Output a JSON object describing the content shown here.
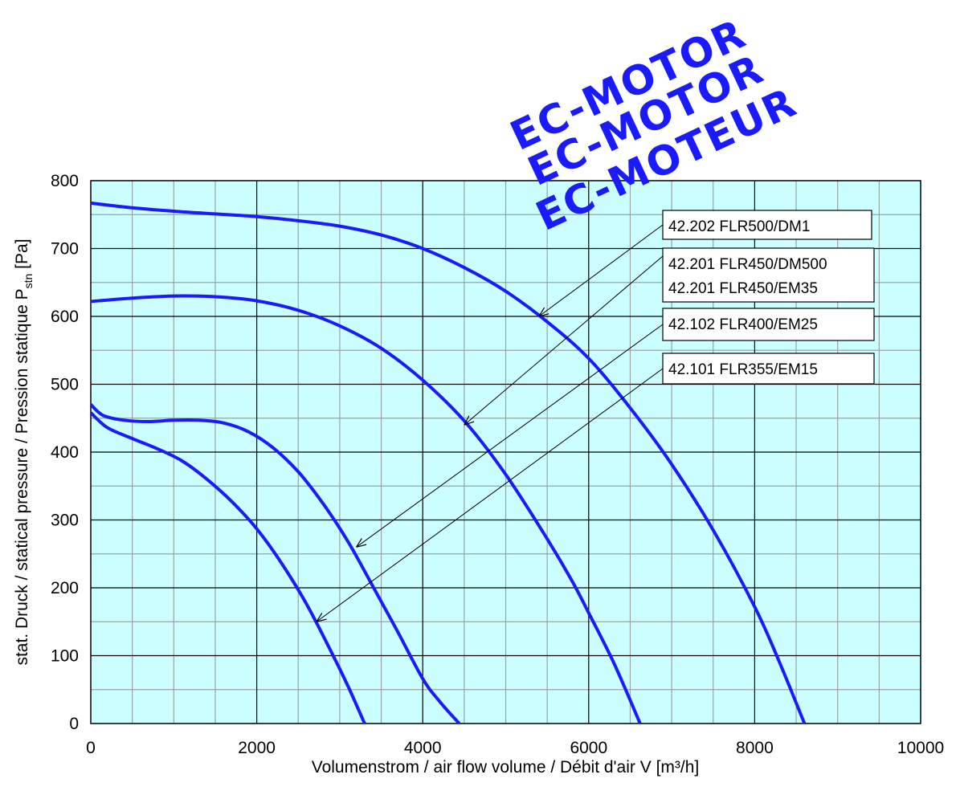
{
  "chart_data": {
    "type": "line",
    "xlabel": "Volumenstrom / air flow volume / Débit d'air V [m³/h]",
    "ylabel": "stat. Druck / statical pressure / Pression statique  P",
    "ylabel_sub": "stn",
    "ylabel_unit": " [Pa]",
    "xlim": [
      0,
      10000
    ],
    "ylim": [
      0,
      800
    ],
    "x_ticks": [
      "0",
      "2000",
      "4000",
      "6000",
      "8000",
      "10000"
    ],
    "y_ticks": [
      "0",
      "100",
      "200",
      "300",
      "400",
      "500",
      "600",
      "700",
      "800"
    ],
    "grid": true,
    "background_color": "#ccffff",
    "line_color": "#1a1aff",
    "series": [
      {
        "name": "42.202 FLR500/DM1",
        "pointer": [
          5400,
          600
        ],
        "x": [
          0,
          500,
          1000,
          1500,
          2000,
          2500,
          3000,
          3500,
          4000,
          4500,
          5000,
          5500,
          6000,
          6500,
          7000,
          7500,
          8000,
          8300,
          8600
        ],
        "y": [
          767,
          760,
          755,
          751,
          747,
          741,
          733,
          720,
          700,
          672,
          637,
          592,
          538,
          465,
          382,
          285,
          172,
          90,
          0
        ]
      },
      {
        "name": "42.201 FLR450/DM500",
        "name2": "42.201 FLR450/EM35",
        "pointer": [
          4500,
          440
        ],
        "x": [
          0,
          500,
          1000,
          1500,
          2000,
          2500,
          3000,
          3500,
          4000,
          4500,
          5000,
          5500,
          5800,
          6000,
          6300,
          6620
        ],
        "y": [
          622,
          627,
          630,
          629,
          623,
          609,
          586,
          553,
          506,
          446,
          367,
          272,
          210,
          163,
          90,
          0
        ]
      },
      {
        "name": "42.102 FLR400/EM25",
        "pointer": [
          3200,
          260
        ],
        "x": [
          0,
          150,
          400,
          700,
          1000,
          1300,
          1600,
          1900,
          2200,
          2500,
          2800,
          3100,
          3400,
          3700,
          4000,
          4200,
          4440
        ],
        "y": [
          470,
          454,
          447,
          445,
          447,
          447,
          443,
          430,
          406,
          371,
          324,
          268,
          202,
          135,
          66,
          33,
          0
        ]
      },
      {
        "name": "42.101 FLR355/EM15",
        "pointer": [
          2720,
          150
        ],
        "x": [
          0,
          200,
          500,
          800,
          1100,
          1400,
          1700,
          2000,
          2300,
          2600,
          2900,
          3100,
          3300
        ],
        "y": [
          458,
          436,
          420,
          405,
          387,
          360,
          327,
          287,
          236,
          176,
          105,
          55,
          0
        ]
      }
    ]
  },
  "watermarks": [
    "EC-MOTOR",
    "EC-MOTOR",
    "EC-MOTEUR"
  ]
}
